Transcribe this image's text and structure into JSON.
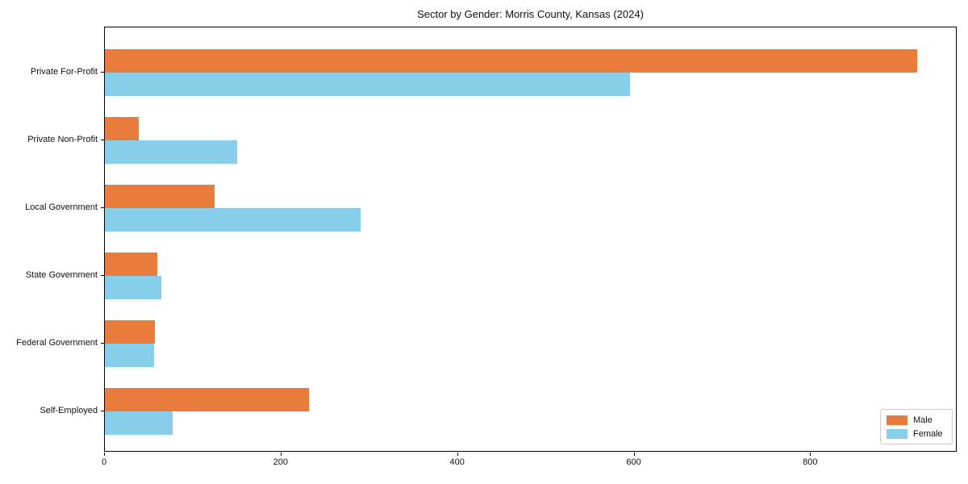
{
  "title": "Sector by Gender: Morris County, Kansas (2024)",
  "colors": {
    "male": "#E87C3C",
    "female": "#87CEEB",
    "axis_frame": "#000000",
    "legend_border": "#CCCCCC",
    "background": "#FFFFFF",
    "text": "#111111"
  },
  "legend": {
    "position": "lower right",
    "items": [
      {
        "label": "Male",
        "color": "#E87C3C"
      },
      {
        "label": "Female",
        "color": "#87CEEB"
      }
    ]
  },
  "chart_data": {
    "type": "bar",
    "orientation": "horizontal",
    "title": "Sector by Gender: Morris County, Kansas (2024)",
    "categories": [
      "Private For-Profit",
      "Private Non-Profit",
      "Local Government",
      "State Government",
      "Federal Government",
      "Self-Employed"
    ],
    "series": [
      {
        "name": "Male",
        "color": "#E87C3C",
        "values": [
          920,
          38,
          124,
          59,
          57,
          231
        ]
      },
      {
        "name": "Female",
        "color": "#87CEEB",
        "values": [
          595,
          150,
          290,
          64,
          56,
          77
        ]
      }
    ],
    "xlabel": "",
    "ylabel": "",
    "xlim": [
      0,
      966
    ],
    "x_ticks": [
      0,
      200,
      400,
      600,
      800
    ],
    "grid": false,
    "legend_position": "lower right"
  }
}
